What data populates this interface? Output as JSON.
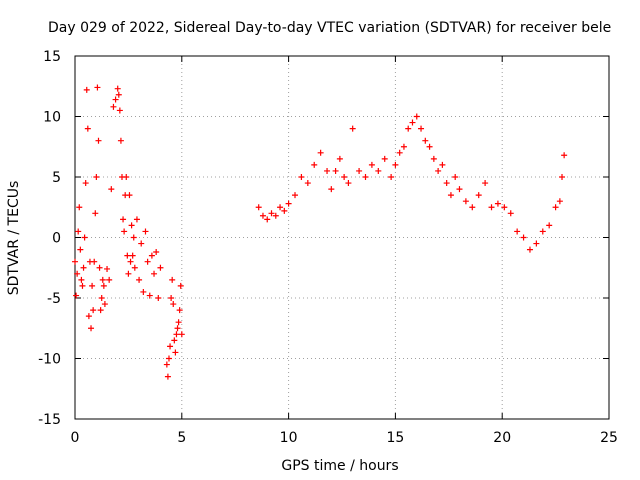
{
  "chart_data": {
    "type": "scatter",
    "title": "Day 029 of 2022, Sidereal Day-to-day VTEC variation (SDTVAR) for receiver bele",
    "xlabel": "GPS time / hours",
    "ylabel": "SDTVAR / TECUs",
    "xlim": [
      0,
      25
    ],
    "ylim": [
      -15,
      15
    ],
    "xticks": [
      0,
      5,
      10,
      15,
      20,
      25
    ],
    "yticks": [
      -15,
      -10,
      -5,
      0,
      5,
      10,
      15
    ],
    "xtick_labels": [
      "0",
      "5",
      "10",
      "15",
      "20",
      "25"
    ],
    "ytick_labels": [
      "-15",
      "-10",
      "-5",
      "0",
      "5",
      "10",
      "15"
    ],
    "grid": true,
    "marker": "+",
    "color": "#ff0000",
    "series": [
      {
        "name": "SDTVAR",
        "x": [
          0.0,
          0.05,
          0.1,
          0.15,
          0.2,
          0.25,
          0.3,
          0.35,
          0.4,
          0.45,
          0.5,
          0.55,
          0.6,
          0.65,
          0.7,
          0.75,
          0.8,
          0.85,
          0.9,
          0.95,
          1.0,
          1.05,
          1.1,
          1.15,
          1.2,
          1.25,
          1.3,
          1.35,
          1.4,
          1.5,
          1.6,
          1.7,
          1.8,
          1.9,
          2.0,
          2.05,
          2.1,
          2.15,
          2.2,
          2.25,
          2.3,
          2.35,
          2.4,
          2.45,
          2.5,
          2.55,
          2.6,
          2.65,
          2.7,
          2.75,
          2.8,
          2.9,
          3.0,
          3.1,
          3.2,
          3.3,
          3.4,
          3.5,
          3.6,
          3.7,
          3.8,
          3.9,
          4.0,
          4.3,
          4.35,
          4.4,
          4.45,
          4.5,
          4.55,
          4.6,
          4.65,
          4.7,
          4.75,
          4.8,
          4.85,
          4.9,
          4.95,
          5.0,
          8.6,
          8.8,
          9.0,
          9.2,
          9.4,
          9.6,
          9.8,
          10.0,
          10.3,
          10.6,
          10.9,
          11.2,
          11.5,
          11.8,
          12.0,
          12.2,
          12.4,
          12.6,
          12.8,
          13.0,
          13.3,
          13.6,
          13.9,
          14.2,
          14.5,
          14.8,
          15.0,
          15.2,
          15.4,
          15.6,
          15.8,
          16.0,
          16.2,
          16.4,
          16.6,
          16.8,
          17.0,
          17.2,
          17.4,
          17.6,
          17.8,
          18.0,
          18.3,
          18.6,
          18.9,
          19.2,
          19.5,
          19.8,
          20.1,
          20.4,
          20.7,
          21.0,
          21.3,
          21.6,
          21.9,
          22.2,
          22.5,
          22.7,
          22.8,
          22.9
        ],
        "y": [
          -2.0,
          -4.8,
          -3.0,
          0.5,
          2.5,
          -1.0,
          -3.5,
          -4.0,
          -2.5,
          0.0,
          4.5,
          12.2,
          9.0,
          -6.5,
          -2.0,
          -7.5,
          -4.0,
          -6.0,
          -2.0,
          2.0,
          5.0,
          12.4,
          8.0,
          -2.5,
          -6.0,
          -5.0,
          -3.5,
          -4.0,
          -5.5,
          -2.6,
          -3.5,
          4.0,
          10.8,
          11.4,
          12.3,
          11.8,
          10.5,
          8.0,
          5.0,
          1.5,
          0.5,
          3.5,
          5.0,
          -1.5,
          -3.0,
          3.5,
          -2.0,
          1.0,
          -1.5,
          0.0,
          -2.5,
          1.5,
          -3.5,
          -0.5,
          -4.5,
          0.5,
          -2.0,
          -4.8,
          -1.5,
          -3.0,
          -1.2,
          -5.0,
          -2.5,
          -10.5,
          -11.5,
          -10.0,
          -9.0,
          -5.0,
          -3.5,
          -5.5,
          -8.5,
          -9.5,
          -8.0,
          -7.5,
          -7.0,
          -6.0,
          -4.0,
          -8.0,
          2.5,
          1.8,
          1.5,
          2.0,
          1.8,
          2.5,
          2.2,
          2.8,
          3.5,
          5.0,
          4.5,
          6.0,
          7.0,
          5.5,
          4.0,
          5.5,
          6.5,
          5.0,
          4.5,
          9.0,
          5.5,
          5.0,
          6.0,
          5.5,
          6.5,
          5.0,
          6.0,
          7.0,
          7.5,
          9.0,
          9.5,
          10.0,
          9.0,
          8.0,
          7.5,
          6.5,
          5.5,
          6.0,
          4.5,
          3.5,
          5.0,
          4.0,
          3.0,
          2.5,
          3.5,
          4.5,
          2.5,
          2.8,
          2.5,
          2.0,
          0.5,
          0.0,
          -1.0,
          -0.5,
          0.5,
          1.0,
          2.5,
          3.0,
          5.0,
          6.8
        ]
      }
    ]
  }
}
